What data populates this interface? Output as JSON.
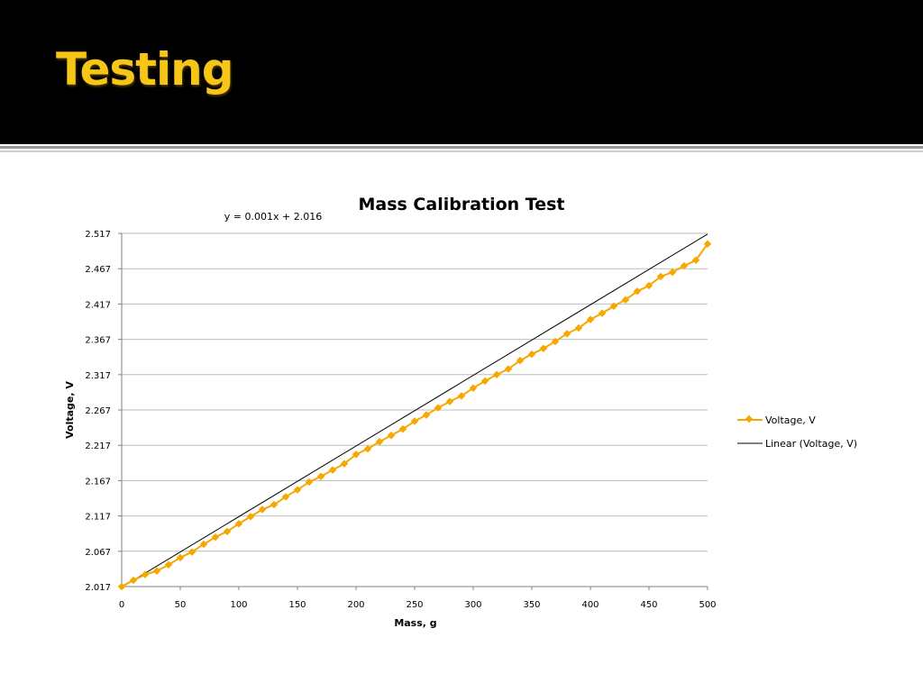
{
  "slide": {
    "title": "Testing"
  },
  "colors": {
    "header_bg": "#000000",
    "title": "#f5c518",
    "series": "#f5a800",
    "trendline": "#000000",
    "grid": "#bdbdbd"
  },
  "chart_data": {
    "type": "scatter",
    "title": "Mass Calibration Test",
    "xlabel": "Mass, g",
    "ylabel": "Voltage, V",
    "xlim": [
      0,
      500
    ],
    "ylim": [
      2.017,
      2.517
    ],
    "xticks": [
      0,
      50,
      100,
      150,
      200,
      250,
      300,
      350,
      400,
      450,
      500
    ],
    "yticks": [
      2.017,
      2.067,
      2.117,
      2.167,
      2.217,
      2.267,
      2.317,
      2.367,
      2.417,
      2.467,
      2.517
    ],
    "x_tick_labels": [
      "0",
      "50",
      "100",
      "150",
      "200",
      "250",
      "300",
      "350",
      "400",
      "450",
      "500"
    ],
    "y_tick_labels": [
      "2.017",
      "2.067",
      "2.117",
      "2.167",
      "2.217",
      "2.267",
      "2.317",
      "2.367",
      "2.417",
      "2.467",
      "2.517"
    ],
    "grid": "horizontal",
    "legend_position": "right",
    "trendline": {
      "name": "Linear (Voltage, V)",
      "equation": "y = 0.001x + 2.016",
      "slope": 0.001,
      "intercept": 2.016
    },
    "series": [
      {
        "name": "Voltage, V",
        "x": [
          0,
          10,
          20,
          30,
          40,
          50,
          60,
          70,
          80,
          90,
          100,
          110,
          120,
          130,
          140,
          150,
          160,
          170,
          180,
          190,
          200,
          210,
          220,
          230,
          240,
          250,
          260,
          270,
          280,
          290,
          300,
          310,
          320,
          330,
          340,
          350,
          360,
          370,
          380,
          390,
          400,
          410,
          420,
          430,
          440,
          450,
          460,
          470,
          480,
          490,
          500
        ],
        "y": [
          2.017,
          2.026,
          2.034,
          2.039,
          2.048,
          2.058,
          2.066,
          2.077,
          2.087,
          2.095,
          2.106,
          2.116,
          2.126,
          2.133,
          2.144,
          2.154,
          2.165,
          2.173,
          2.182,
          2.191,
          2.204,
          2.212,
          2.222,
          2.231,
          2.24,
          2.251,
          2.26,
          2.27,
          2.279,
          2.287,
          2.298,
          2.308,
          2.317,
          2.325,
          2.337,
          2.346,
          2.354,
          2.364,
          2.375,
          2.383,
          2.395,
          2.404,
          2.414,
          2.423,
          2.435,
          2.443,
          2.456,
          2.462,
          2.471,
          2.479,
          2.502
        ]
      }
    ]
  }
}
